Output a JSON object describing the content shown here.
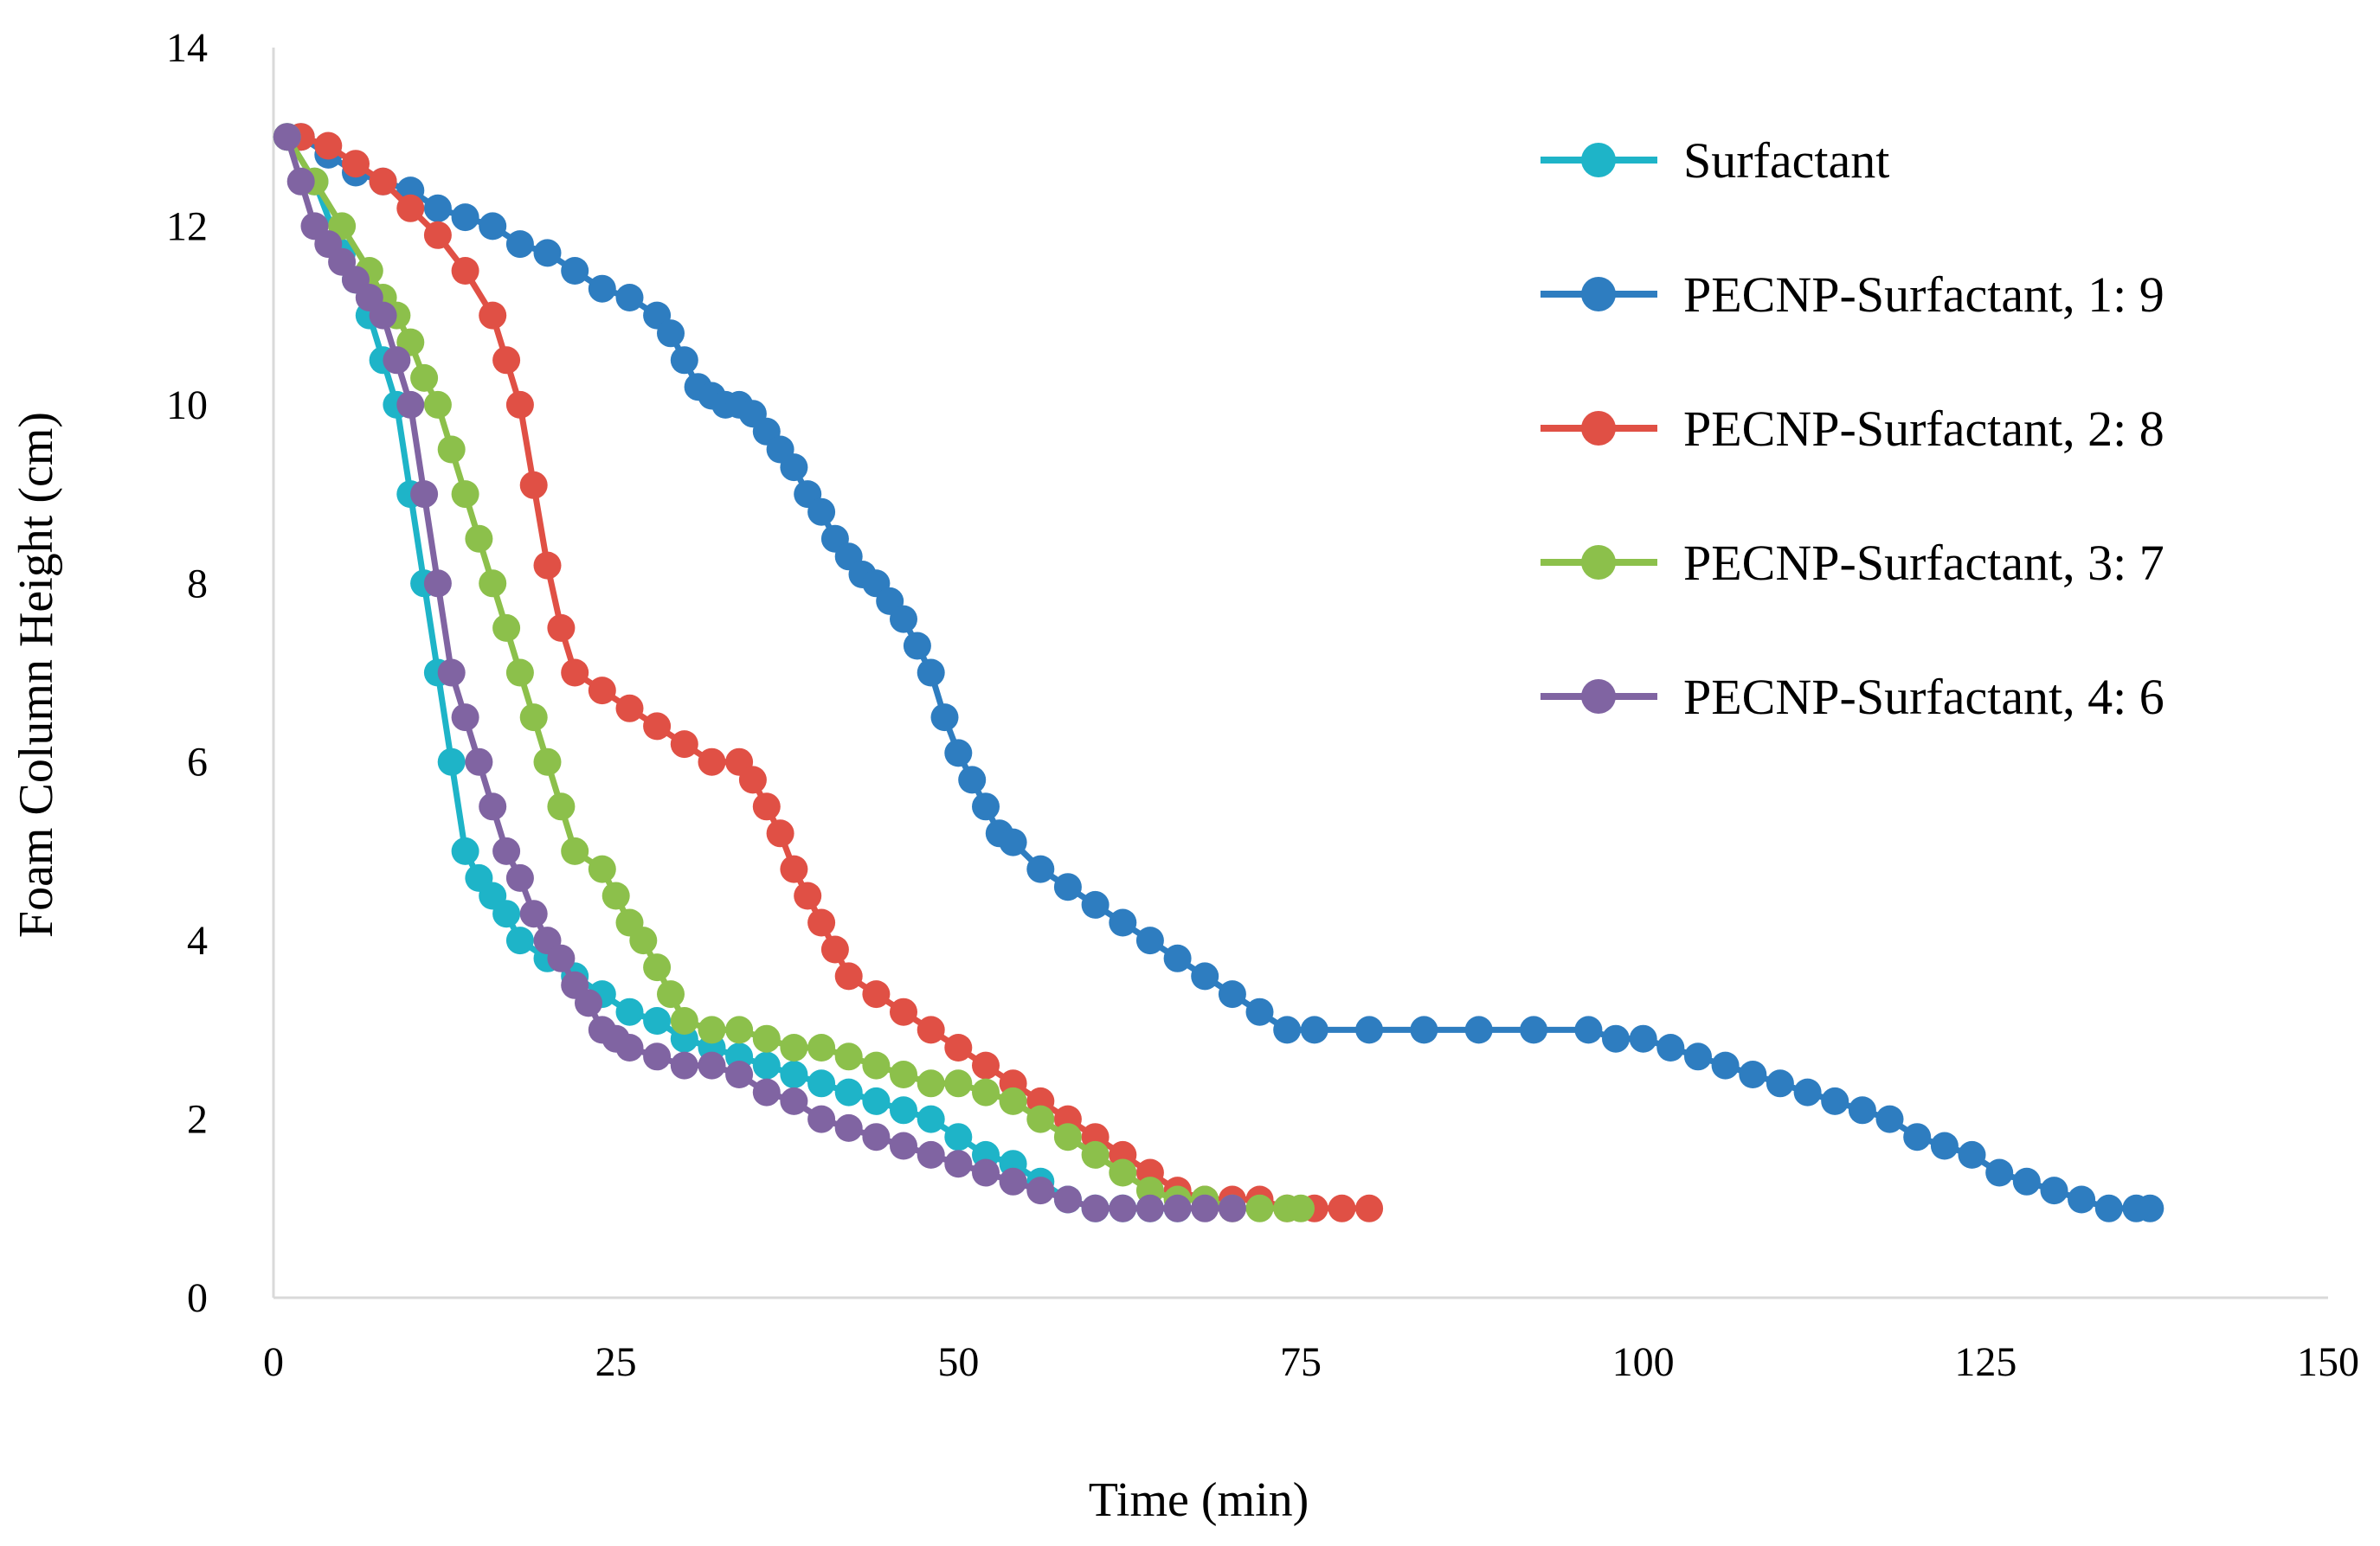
{
  "chart_data": {
    "type": "line",
    "title": "",
    "xlabel": "Time (min)",
    "ylabel": "Foam Column Height (cm)",
    "xlim": [
      0,
      150
    ],
    "ylim": [
      0,
      14
    ],
    "xticks": [
      0,
      25,
      50,
      75,
      100,
      125,
      150
    ],
    "yticks": [
      0,
      2,
      4,
      6,
      8,
      10,
      12,
      14
    ],
    "grid": false,
    "legend_position": "top-right",
    "series": [
      {
        "name": "Surfactant",
        "color": "#1EB4C8",
        "points": [
          [
            1,
            13
          ],
          [
            3,
            12.5
          ],
          [
            5,
            11.7
          ],
          [
            6,
            11.4
          ],
          [
            7,
            11
          ],
          [
            8,
            10.5
          ],
          [
            9,
            10
          ],
          [
            10,
            9
          ],
          [
            11,
            8
          ],
          [
            12,
            7
          ],
          [
            13,
            6
          ],
          [
            14,
            5
          ],
          [
            15,
            4.7
          ],
          [
            16,
            4.5
          ],
          [
            17,
            4.3
          ],
          [
            18,
            4
          ],
          [
            20,
            3.8
          ],
          [
            22,
            3.6
          ],
          [
            24,
            3.4
          ],
          [
            26,
            3.2
          ],
          [
            28,
            3.1
          ],
          [
            30,
            2.9
          ],
          [
            32,
            2.8
          ],
          [
            34,
            2.7
          ],
          [
            36,
            2.6
          ],
          [
            38,
            2.5
          ],
          [
            40,
            2.4
          ],
          [
            42,
            2.3
          ],
          [
            44,
            2.2
          ],
          [
            46,
            2.1
          ],
          [
            48,
            2.0
          ],
          [
            50,
            1.8
          ],
          [
            52,
            1.6
          ],
          [
            54,
            1.5
          ],
          [
            56,
            1.3
          ],
          [
            58,
            1.1
          ],
          [
            60,
            1.0
          ],
          [
            62,
            1.0
          ],
          [
            64,
            1.0
          ],
          [
            66,
            1.0
          ]
        ]
      },
      {
        "name": "PECNP-Surfactant, 1: 9",
        "color": "#2E7DC0",
        "points": [
          [
            2,
            13
          ],
          [
            4,
            12.8
          ],
          [
            6,
            12.6
          ],
          [
            8,
            12.5
          ],
          [
            10,
            12.4
          ],
          [
            12,
            12.2
          ],
          [
            14,
            12.1
          ],
          [
            16,
            12
          ],
          [
            18,
            11.8
          ],
          [
            20,
            11.7
          ],
          [
            22,
            11.5
          ],
          [
            24,
            11.3
          ],
          [
            26,
            11.2
          ],
          [
            28,
            11
          ],
          [
            29,
            10.8
          ],
          [
            30,
            10.5
          ],
          [
            31,
            10.2
          ],
          [
            32,
            10.1
          ],
          [
            33,
            10
          ],
          [
            34,
            10
          ],
          [
            35,
            9.9
          ],
          [
            36,
            9.7
          ],
          [
            37,
            9.5
          ],
          [
            38,
            9.3
          ],
          [
            39,
            9
          ],
          [
            40,
            8.8
          ],
          [
            41,
            8.5
          ],
          [
            42,
            8.3
          ],
          [
            43,
            8.1
          ],
          [
            44,
            8
          ],
          [
            45,
            7.8
          ],
          [
            46,
            7.6
          ],
          [
            47,
            7.3
          ],
          [
            48,
            7
          ],
          [
            49,
            6.5
          ],
          [
            50,
            6.1
          ],
          [
            51,
            5.8
          ],
          [
            52,
            5.5
          ],
          [
            53,
            5.2
          ],
          [
            54,
            5.1
          ],
          [
            56,
            4.8
          ],
          [
            58,
            4.6
          ],
          [
            60,
            4.4
          ],
          [
            62,
            4.2
          ],
          [
            64,
            4
          ],
          [
            66,
            3.8
          ],
          [
            68,
            3.6
          ],
          [
            70,
            3.4
          ],
          [
            72,
            3.2
          ],
          [
            74,
            3
          ],
          [
            76,
            3
          ],
          [
            80,
            3
          ],
          [
            84,
            3
          ],
          [
            88,
            3
          ],
          [
            92,
            3
          ],
          [
            96,
            3
          ],
          [
            98,
            2.9
          ],
          [
            100,
            2.9
          ],
          [
            102,
            2.8
          ],
          [
            104,
            2.7
          ],
          [
            106,
            2.6
          ],
          [
            108,
            2.5
          ],
          [
            110,
            2.4
          ],
          [
            112,
            2.3
          ],
          [
            114,
            2.2
          ],
          [
            116,
            2.1
          ],
          [
            118,
            2
          ],
          [
            120,
            1.8
          ],
          [
            122,
            1.7
          ],
          [
            124,
            1.6
          ],
          [
            126,
            1.4
          ],
          [
            128,
            1.3
          ],
          [
            130,
            1.2
          ],
          [
            132,
            1.1
          ],
          [
            134,
            1
          ],
          [
            136,
            1
          ],
          [
            137,
            1
          ]
        ]
      },
      {
        "name": "PECNP-Surfactant, 2: 8",
        "color": "#E05045",
        "points": [
          [
            2,
            13
          ],
          [
            4,
            12.9
          ],
          [
            6,
            12.7
          ],
          [
            8,
            12.5
          ],
          [
            10,
            12.2
          ],
          [
            12,
            11.9
          ],
          [
            14,
            11.5
          ],
          [
            16,
            11
          ],
          [
            17,
            10.5
          ],
          [
            18,
            10
          ],
          [
            19,
            9.1
          ],
          [
            20,
            8.2
          ],
          [
            21,
            7.5
          ],
          [
            22,
            7
          ],
          [
            24,
            6.8
          ],
          [
            26,
            6.6
          ],
          [
            28,
            6.4
          ],
          [
            30,
            6.2
          ],
          [
            32,
            6
          ],
          [
            34,
            6
          ],
          [
            35,
            5.8
          ],
          [
            36,
            5.5
          ],
          [
            37,
            5.2
          ],
          [
            38,
            4.8
          ],
          [
            39,
            4.5
          ],
          [
            40,
            4.2
          ],
          [
            41,
            3.9
          ],
          [
            42,
            3.6
          ],
          [
            44,
            3.4
          ],
          [
            46,
            3.2
          ],
          [
            48,
            3
          ],
          [
            50,
            2.8
          ],
          [
            52,
            2.6
          ],
          [
            54,
            2.4
          ],
          [
            56,
            2.2
          ],
          [
            58,
            2
          ],
          [
            60,
            1.8
          ],
          [
            62,
            1.6
          ],
          [
            64,
            1.4
          ],
          [
            66,
            1.2
          ],
          [
            68,
            1.1
          ],
          [
            70,
            1.1
          ],
          [
            72,
            1.1
          ],
          [
            74,
            1
          ],
          [
            76,
            1
          ],
          [
            78,
            1
          ],
          [
            80,
            1
          ]
        ]
      },
      {
        "name": "PECNP-Surfactant, 3: 7",
        "color": "#8CC04B",
        "points": [
          [
            1,
            13
          ],
          [
            3,
            12.5
          ],
          [
            5,
            12
          ],
          [
            7,
            11.5
          ],
          [
            8,
            11.2
          ],
          [
            9,
            11
          ],
          [
            10,
            10.7
          ],
          [
            11,
            10.3
          ],
          [
            12,
            10
          ],
          [
            13,
            9.5
          ],
          [
            14,
            9
          ],
          [
            15,
            8.5
          ],
          [
            16,
            8
          ],
          [
            17,
            7.5
          ],
          [
            18,
            7
          ],
          [
            19,
            6.5
          ],
          [
            20,
            6
          ],
          [
            21,
            5.5
          ],
          [
            22,
            5
          ],
          [
            24,
            4.8
          ],
          [
            25,
            4.5
          ],
          [
            26,
            4.2
          ],
          [
            27,
            4
          ],
          [
            28,
            3.7
          ],
          [
            29,
            3.4
          ],
          [
            30,
            3.1
          ],
          [
            32,
            3
          ],
          [
            34,
            3
          ],
          [
            36,
            2.9
          ],
          [
            38,
            2.8
          ],
          [
            40,
            2.8
          ],
          [
            42,
            2.7
          ],
          [
            44,
            2.6
          ],
          [
            46,
            2.5
          ],
          [
            48,
            2.4
          ],
          [
            50,
            2.4
          ],
          [
            52,
            2.3
          ],
          [
            54,
            2.2
          ],
          [
            56,
            2
          ],
          [
            58,
            1.8
          ],
          [
            60,
            1.6
          ],
          [
            62,
            1.4
          ],
          [
            64,
            1.2
          ],
          [
            66,
            1.1
          ],
          [
            68,
            1.1
          ],
          [
            70,
            1
          ],
          [
            72,
            1
          ],
          [
            74,
            1
          ],
          [
            75,
            1
          ]
        ]
      },
      {
        "name": "PECNP-Surfactant, 4: 6",
        "color": "#8064A2",
        "points": [
          [
            1,
            13
          ],
          [
            2,
            12.5
          ],
          [
            3,
            12
          ],
          [
            4,
            11.8
          ],
          [
            5,
            11.6
          ],
          [
            6,
            11.4
          ],
          [
            7,
            11.2
          ],
          [
            8,
            11
          ],
          [
            9,
            10.5
          ],
          [
            10,
            10
          ],
          [
            11,
            9
          ],
          [
            12,
            8
          ],
          [
            13,
            7
          ],
          [
            14,
            6.5
          ],
          [
            15,
            6
          ],
          [
            16,
            5.5
          ],
          [
            17,
            5
          ],
          [
            18,
            4.7
          ],
          [
            19,
            4.3
          ],
          [
            20,
            4
          ],
          [
            21,
            3.8
          ],
          [
            22,
            3.5
          ],
          [
            23,
            3.3
          ],
          [
            24,
            3
          ],
          [
            25,
            2.9
          ],
          [
            26,
            2.8
          ],
          [
            28,
            2.7
          ],
          [
            30,
            2.6
          ],
          [
            32,
            2.6
          ],
          [
            34,
            2.5
          ],
          [
            36,
            2.3
          ],
          [
            38,
            2.2
          ],
          [
            40,
            2
          ],
          [
            42,
            1.9
          ],
          [
            44,
            1.8
          ],
          [
            46,
            1.7
          ],
          [
            48,
            1.6
          ],
          [
            50,
            1.5
          ],
          [
            52,
            1.4
          ],
          [
            54,
            1.3
          ],
          [
            56,
            1.2
          ],
          [
            58,
            1.1
          ],
          [
            60,
            1
          ],
          [
            62,
            1
          ],
          [
            64,
            1
          ],
          [
            66,
            1
          ],
          [
            68,
            1
          ],
          [
            70,
            1
          ]
        ]
      }
    ]
  }
}
